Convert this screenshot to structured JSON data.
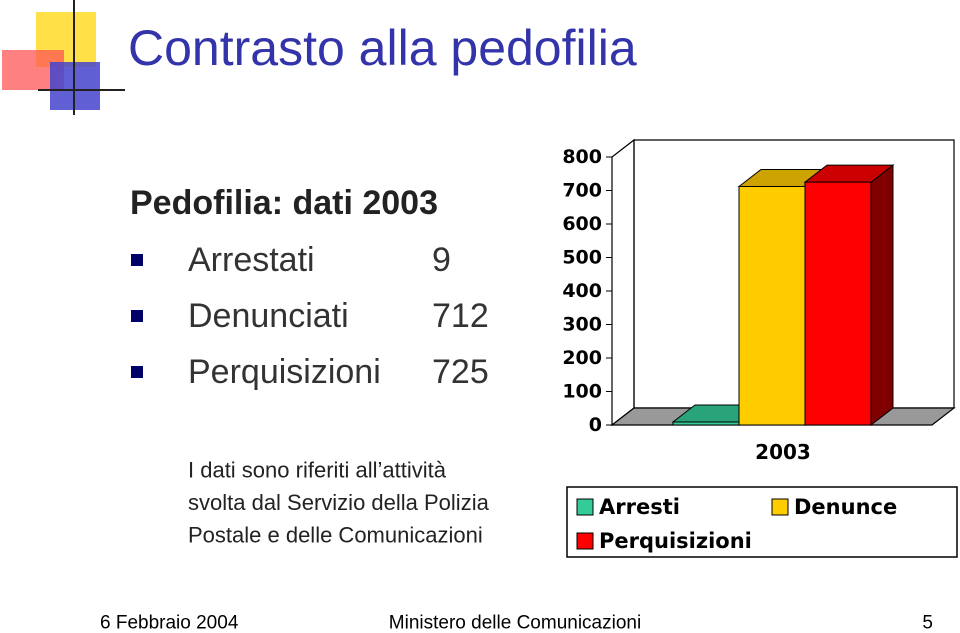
{
  "title": "Contrasto alla pedofilia",
  "subtitle": "Pedofilia: dati 2003",
  "items": [
    {
      "label": "Arrestati",
      "value": 9
    },
    {
      "label": "Denunciati",
      "value": 712
    },
    {
      "label": "Perquisizioni",
      "value": 725
    }
  ],
  "note": [
    "I dati sono riferiti all’attività",
    "svolta dal Servizio della Polizia",
    "Postale e delle Comunicazioni"
  ],
  "footer": {
    "date": "6 Febbraio 2004",
    "center": "Ministero delle Comunicazioni",
    "page": 5
  },
  "chart_data": {
    "type": "bar3d",
    "categories": [
      "2003"
    ],
    "series": [
      {
        "name": "Arresti",
        "color": "#33cc99",
        "values": [
          9
        ]
      },
      {
        "name": "Denunce",
        "color": "#ffcc00",
        "values": [
          712
        ]
      },
      {
        "name": "Perquisizioni",
        "color": "#ff0000",
        "values": [
          725
        ]
      }
    ],
    "ylim": [
      0,
      800
    ],
    "yticks": [
      0,
      100,
      200,
      300,
      400,
      500,
      600,
      700,
      800
    ]
  }
}
